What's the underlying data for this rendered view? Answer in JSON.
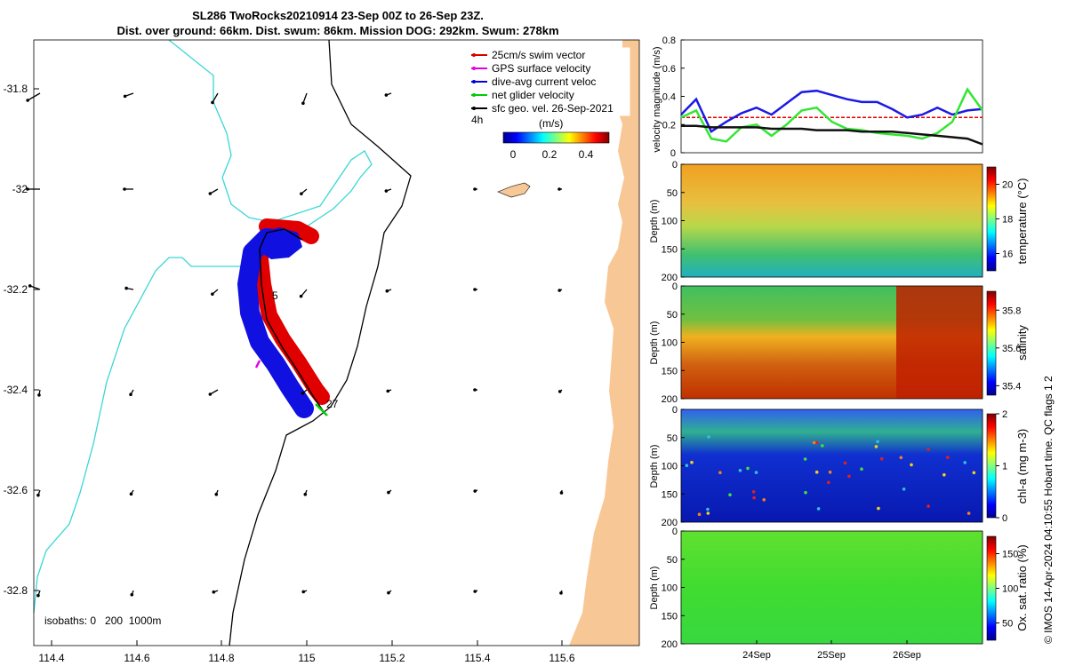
{
  "header": {
    "title_line1": "SL286 TwoRocks20210914 23-Sep 00Z to 26-Sep 23Z.",
    "title_line2": "Dist. over ground: 66km. Dist. swum: 86km. Mission DOG: 292km. Swum: 278km"
  },
  "map": {
    "legend": [
      {
        "label": "25cm/s swim vector",
        "color": "#d60000"
      },
      {
        "label": "GPS surface velocity",
        "color": "#e600e6"
      },
      {
        "label": "dive-avg current veloc",
        "color": "#0000e0"
      },
      {
        "label": "net glider velocity",
        "color": "#00cc00"
      },
      {
        "label": "sfc geo. vel. 26-Sep-2021",
        "color": "#000000"
      }
    ],
    "legend_time": "4h",
    "colorbar_unit": "(m/s)",
    "colorbar_ticks": [
      "0",
      "0.2",
      "0.4"
    ],
    "isobaths_label": "isobaths: 0   200  1000m",
    "track_labels": [
      "5",
      "27"
    ],
    "x_ticks": [
      "114.4",
      "114.6",
      "114.8",
      "115",
      "115.2",
      "115.4",
      "115.6"
    ],
    "y_ticks": [
      "-31.8",
      "-32",
      "-32.2",
      "-32.4",
      "-32.6",
      "-32.8"
    ]
  },
  "chart_data": [
    {
      "type": "line",
      "ylabel": "velocity magnitude (m/s)",
      "ylim": [
        0,
        0.8
      ],
      "y_ticks": [
        "0",
        "0.2",
        "0.4",
        "0.6",
        "0.8"
      ],
      "x": [
        0,
        0.05,
        0.1,
        0.15,
        0.2,
        0.25,
        0.3,
        0.35,
        0.4,
        0.45,
        0.5,
        0.55,
        0.6,
        0.65,
        0.7,
        0.75,
        0.8,
        0.85,
        0.9,
        0.95,
        1.0
      ],
      "series": [
        {
          "name": "25cm/s swim vector",
          "color": "#e00000",
          "values": [
            0.25,
            0.25,
            0.25,
            0.25,
            0.25,
            0.25,
            0.25,
            0.25,
            0.25,
            0.25,
            0.25,
            0.25,
            0.25,
            0.25,
            0.25,
            0.25,
            0.25,
            0.25,
            0.25,
            0.25,
            0.25
          ]
        },
        {
          "name": "dive-avg current veloc",
          "color": "#1a1ae6",
          "values": [
            0.27,
            0.38,
            0.15,
            0.22,
            0.28,
            0.32,
            0.27,
            0.35,
            0.43,
            0.44,
            0.41,
            0.38,
            0.36,
            0.36,
            0.31,
            0.25,
            0.27,
            0.32,
            0.27,
            0.3,
            0.31
          ]
        },
        {
          "name": "net glider velocity",
          "color": "#33e633",
          "values": [
            0.25,
            0.3,
            0.1,
            0.08,
            0.18,
            0.2,
            0.12,
            0.2,
            0.3,
            0.32,
            0.22,
            0.17,
            0.16,
            0.14,
            0.13,
            0.12,
            0.1,
            0.14,
            0.22,
            0.45,
            0.3
          ]
        },
        {
          "name": "sfc geo. vel. 26-Sep-2021",
          "color": "#111111",
          "values": [
            0.19,
            0.19,
            0.18,
            0.18,
            0.18,
            0.18,
            0.17,
            0.17,
            0.17,
            0.16,
            0.16,
            0.16,
            0.15,
            0.15,
            0.15,
            0.14,
            0.13,
            0.12,
            0.11,
            0.1,
            0.06
          ]
        }
      ]
    },
    {
      "type": "heatmap",
      "ylabel": "Depth (m)",
      "clabel": "temperature (°C)",
      "y_ticks": [
        "0",
        "50",
        "100",
        "150",
        "200"
      ],
      "c_ticks": [
        "16",
        "18",
        "20"
      ],
      "clim": [
        15,
        21
      ]
    },
    {
      "type": "heatmap",
      "ylabel": "Depth (m)",
      "clabel": "salinity",
      "y_ticks": [
        "0",
        "50",
        "100",
        "150",
        "200"
      ],
      "c_ticks": [
        "35.4",
        "35.6",
        "35.8"
      ],
      "clim": [
        35.35,
        35.9
      ]
    },
    {
      "type": "heatmap",
      "ylabel": "Depth (m)",
      "clabel": "chl-a (mg m-3)",
      "y_ticks": [
        "0",
        "50",
        "100",
        "150",
        "200"
      ],
      "c_ticks": [
        "0",
        "1",
        "2"
      ],
      "clim": [
        0,
        2
      ]
    },
    {
      "type": "heatmap",
      "ylabel": "Depth (m)",
      "clabel": "Ox. sat. ratio (%)",
      "y_ticks": [
        "0",
        "50",
        "100",
        "150",
        "200"
      ],
      "c_ticks": [
        "50",
        "100",
        "150"
      ],
      "clim": [
        25,
        175
      ],
      "x_ticks": [
        "24Sep",
        "25Sep",
        "26Sep"
      ]
    }
  ],
  "side_label": "QC flags 1  2",
  "credit": "© IMOS 14-Apr-2024 04:10:55 Hobart time."
}
